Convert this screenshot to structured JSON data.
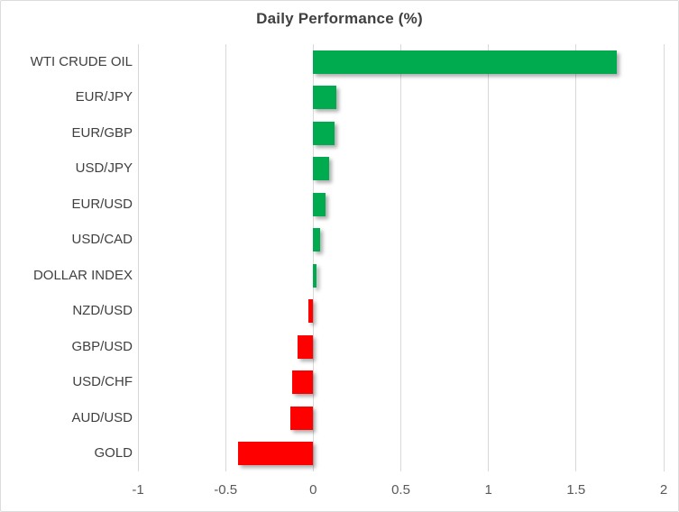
{
  "chart_data": {
    "type": "bar",
    "orientation": "horizontal",
    "title": "Daily Performance (%)",
    "categories": [
      "WTI CRUDE OIL",
      "EUR/JPY",
      "EUR/GBP",
      "USD/JPY",
      "EUR/USD",
      "USD/CAD",
      "DOLLAR INDEX",
      "NZD/USD",
      "GBP/USD",
      "USD/CHF",
      "AUD/USD",
      "GOLD"
    ],
    "values": [
      1.73,
      0.13,
      0.12,
      0.09,
      0.07,
      0.04,
      0.02,
      -0.03,
      -0.09,
      -0.12,
      -0.13,
      -0.43
    ],
    "xlim": [
      -1,
      2
    ],
    "xticks": [
      -1,
      -0.5,
      0,
      0.5,
      1,
      1.5,
      2
    ],
    "xtick_labels": [
      "-1",
      "-0.5",
      "0",
      "0.5",
      "1",
      "1.5",
      "2"
    ],
    "positive_color": "#00ab50",
    "negative_color": "#ff0000",
    "gridline_color": "#d9d9d9",
    "grid": true,
    "legend": false
  }
}
